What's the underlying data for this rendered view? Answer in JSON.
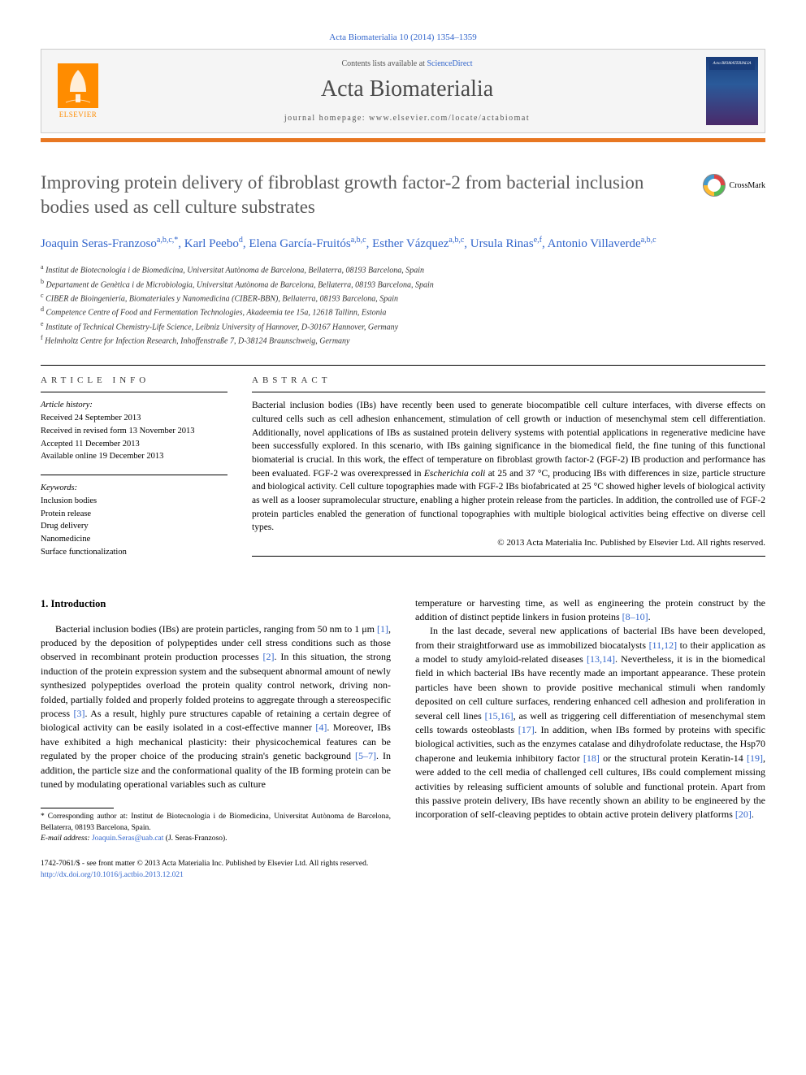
{
  "header": {
    "citation": "Acta Biomaterialia 10 (2014) 1354–1359",
    "contents_prefix": "Contents lists available at ",
    "contents_link": "ScienceDirect",
    "journal": "Acta Biomaterialia",
    "homepage_prefix": "journal homepage: ",
    "homepage_url": "www.elsevier.com/locate/actabiomat",
    "publisher_logo": "ELSEVIER",
    "cover_label": "Acta BIOMATERIALIA"
  },
  "crossmark": "CrossMark",
  "title": "Improving protein delivery of fibroblast growth factor-2 from bacterial inclusion bodies used as cell culture substrates",
  "authors": [
    {
      "name": "Joaquin Seras-Franzoso",
      "aff": "a,b,c,",
      "corr": "*"
    },
    {
      "name": "Karl Peebo",
      "aff": "d"
    },
    {
      "name": "Elena García-Fruitós",
      "aff": "a,b,c"
    },
    {
      "name": "Esther Vázquez",
      "aff": "a,b,c"
    },
    {
      "name": "Ursula Rinas",
      "aff": "e,f"
    },
    {
      "name": "Antonio Villaverde",
      "aff": "a,b,c"
    }
  ],
  "affiliations": [
    {
      "key": "a",
      "text": "Institut de Biotecnologia i de Biomedicina, Universitat Autònoma de Barcelona, Bellaterra, 08193 Barcelona, Spain"
    },
    {
      "key": "b",
      "text": "Departament de Genètica i de Microbiologia, Universitat Autònoma de Barcelona, Bellaterra, 08193 Barcelona, Spain"
    },
    {
      "key": "c",
      "text": "CIBER de Bioingeniería, Biomateriales y Nanomedicina (CIBER-BBN), Bellaterra, 08193 Barcelona, Spain"
    },
    {
      "key": "d",
      "text": "Competence Centre of Food and Fermentation Technologies, Akadeemia tee 15a, 12618 Tallinn, Estonia"
    },
    {
      "key": "e",
      "text": "Institute of Technical Chemistry-Life Science, Leibniz University of Hannover, D-30167 Hannover, Germany"
    },
    {
      "key": "f",
      "text": "Helmholtz Centre for Infection Research, Inhoffenstraße 7, D-38124 Braunschweig, Germany"
    }
  ],
  "article_info": {
    "heading": "ARTICLE INFO",
    "history_label": "Article history:",
    "received": "Received 24 September 2013",
    "revised": "Received in revised form 13 November 2013",
    "accepted": "Accepted 11 December 2013",
    "online": "Available online 19 December 2013",
    "keywords_label": "Keywords:",
    "keywords": [
      "Inclusion bodies",
      "Protein release",
      "Drug delivery",
      "Nanomedicine",
      "Surface functionalization"
    ]
  },
  "abstract": {
    "heading": "ABSTRACT",
    "text": "Bacterial inclusion bodies (IBs) have recently been used to generate biocompatible cell culture interfaces, with diverse effects on cultured cells such as cell adhesion enhancement, stimulation of cell growth or induction of mesenchymal stem cell differentiation. Additionally, novel applications of IBs as sustained protein delivery systems with potential applications in regenerative medicine have been successfully explored. In this scenario, with IBs gaining significance in the biomedical field, the fine tuning of this functional biomaterial is crucial. In this work, the effect of temperature on fibroblast growth factor-2 (FGF-2) IB production and performance has been evaluated. FGF-2 was overexpressed in Escherichia coli at 25 and 37 °C, producing IBs with differences in size, particle structure and biological activity. Cell culture topographies made with FGF-2 IBs biofabricated at 25 °C showed higher levels of biological activity as well as a looser supramolecular structure, enabling a higher protein release from the particles. In addition, the controlled use of FGF-2 protein particles enabled the generation of functional topographies with multiple biological activities being effective on diverse cell types.",
    "copyright": "© 2013 Acta Materialia Inc. Published by Elsevier Ltd. All rights reserved."
  },
  "body": {
    "heading": "1. Introduction",
    "left_para": "Bacterial inclusion bodies (IBs) are protein particles, ranging from 50 nm to 1 μm [1], produced by the deposition of polypeptides under cell stress conditions such as those observed in recombinant protein production processes [2]. In this situation, the strong induction of the protein expression system and the subsequent abnormal amount of newly synthesized polypeptides overload the protein quality control network, driving non-folded, partially folded and properly folded proteins to aggregate through a stereospecific process [3]. As a result, highly pure structures capable of retaining a certain degree of biological activity can be easily isolated in a cost-effective manner [4]. Moreover, IBs have exhibited a high mechanical plasticity: their physicochemical features can be regulated by the proper choice of the producing strain's genetic background [5–7]. In addition, the particle size and the conformational quality of the IB forming protein can be tuned by modulating operational variables such as culture",
    "right_para1": "temperature or harvesting time, as well as engineering the protein construct by the addition of distinct peptide linkers in fusion proteins [8–10].",
    "right_para2": "In the last decade, several new applications of bacterial IBs have been developed, from their straightforward use as immobilized biocatalysts [11,12] to their application as a model to study amyloid-related diseases [13,14]. Nevertheless, it is in the biomedical field in which bacterial IBs have recently made an important appearance. These protein particles have been shown to provide positive mechanical stimuli when randomly deposited on cell culture surfaces, rendering enhanced cell adhesion and proliferation in several cell lines [15,16], as well as triggering cell differentiation of mesenchymal stem cells towards osteoblasts [17]. In addition, when IBs formed by proteins with specific biological activities, such as the enzymes catalase and dihydrofolate reductase, the Hsp70 chaperone and leukemia inhibitory factor [18] or the structural protein Keratin-14 [19], were added to the cell media of challenged cell cultures, IBs could complement missing activities by releasing sufficient amounts of soluble and functional protein. Apart from this passive protein delivery, IBs have recently shown an ability to be engineered by the incorporation of self-cleaving peptides to obtain active protein delivery platforms [20]."
  },
  "footnote": {
    "corr_label": "* Corresponding author at: Institut de Biotecnologia i de Biomedicina, Universitat Autònoma de Barcelona, Bellaterra, 08193 Barcelona, Spain.",
    "email_label": "E-mail address:",
    "email": "Joaquin.Seras@uab.cat",
    "email_name": "(J. Seras-Franzoso)."
  },
  "footer": {
    "issn": "1742-7061/$ - see front matter © 2013 Acta Materialia Inc. Published by Elsevier Ltd. All rights reserved.",
    "doi": "http://dx.doi.org/10.1016/j.actbio.2013.12.021"
  },
  "colors": {
    "link": "#3366cc",
    "orange": "#e87722",
    "title_gray": "#5a5a5a"
  }
}
